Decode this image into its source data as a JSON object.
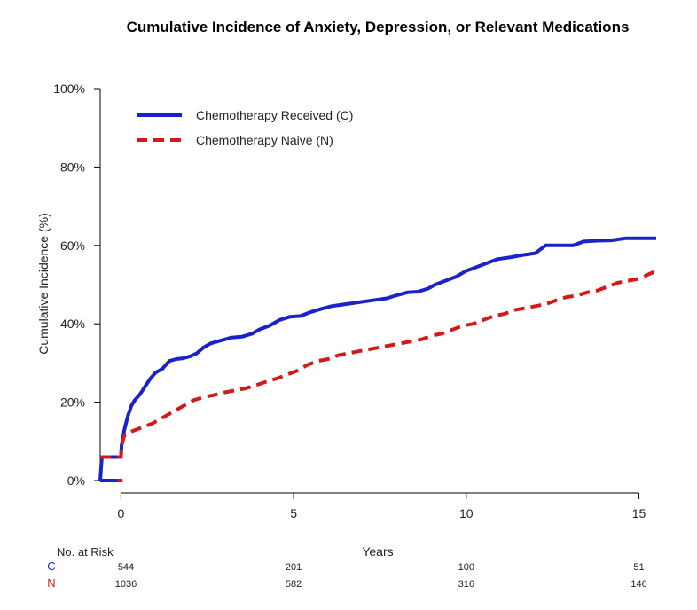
{
  "chart_data": {
    "type": "line",
    "title": "Cumulative Incidence of Anxiety, Depression, or Relevant Medications",
    "xlabel": "Years",
    "ylabel": "Cumulative Incidence (%)",
    "xlim": [
      -0.6,
      15.5
    ],
    "ylim": [
      0,
      100
    ],
    "x_ticks": [
      0,
      5,
      10,
      15
    ],
    "y_ticks": [
      0,
      20,
      40,
      60,
      80,
      100
    ],
    "y_tick_suffix": "%",
    "grid": false,
    "legend_position": "top-left",
    "series": [
      {
        "name": "Chemotherapy Received (C)",
        "color": "#1a22c8",
        "style": "solid",
        "points": [
          [
            -0.6,
            0
          ],
          [
            -0.55,
            6
          ],
          [
            0,
            6
          ],
          [
            0.02,
            9
          ],
          [
            0.1,
            13
          ],
          [
            0.2,
            16.5
          ],
          [
            0.3,
            19
          ],
          [
            0.4,
            20.5
          ],
          [
            0.55,
            22
          ],
          [
            0.7,
            24
          ],
          [
            0.85,
            26
          ],
          [
            1.0,
            27.5
          ],
          [
            1.2,
            28.5
          ],
          [
            1.4,
            30.5
          ],
          [
            1.6,
            31
          ],
          [
            1.8,
            31.2
          ],
          [
            2.0,
            31.7
          ],
          [
            2.2,
            32.5
          ],
          [
            2.4,
            34
          ],
          [
            2.6,
            35
          ],
          [
            2.8,
            35.5
          ],
          [
            3.0,
            36
          ],
          [
            3.2,
            36.5
          ],
          [
            3.5,
            36.7
          ],
          [
            3.8,
            37.5
          ],
          [
            4.0,
            38.5
          ],
          [
            4.3,
            39.5
          ],
          [
            4.6,
            41
          ],
          [
            4.9,
            41.8
          ],
          [
            5.2,
            42
          ],
          [
            5.5,
            43
          ],
          [
            5.8,
            43.8
          ],
          [
            6.1,
            44.5
          ],
          [
            6.5,
            45
          ],
          [
            6.9,
            45.5
          ],
          [
            7.3,
            46
          ],
          [
            7.7,
            46.5
          ],
          [
            8.0,
            47.3
          ],
          [
            8.3,
            48
          ],
          [
            8.6,
            48.2
          ],
          [
            8.9,
            49
          ],
          [
            9.1,
            50
          ],
          [
            9.4,
            51
          ],
          [
            9.7,
            52
          ],
          [
            10.0,
            53.5
          ],
          [
            10.3,
            54.5
          ],
          [
            10.6,
            55.5
          ],
          [
            10.9,
            56.5
          ],
          [
            11.3,
            57
          ],
          [
            11.6,
            57.5
          ],
          [
            12.0,
            58
          ],
          [
            12.3,
            60
          ],
          [
            12.7,
            60
          ],
          [
            13.1,
            60
          ],
          [
            13.4,
            61
          ],
          [
            13.8,
            61.2
          ],
          [
            14.2,
            61.3
          ],
          [
            14.6,
            61.8
          ],
          [
            15.0,
            61.8
          ],
          [
            15.5,
            61.8
          ]
        ]
      },
      {
        "name": "Chemotherapy Naive (N)",
        "color": "#d11a1a",
        "style": "dashed",
        "points": [
          [
            -0.6,
            6
          ],
          [
            0,
            6
          ],
          [
            0.02,
            9
          ],
          [
            0.1,
            11.5
          ],
          [
            0.3,
            12.5
          ],
          [
            0.6,
            13.5
          ],
          [
            0.9,
            14.5
          ],
          [
            1.2,
            16
          ],
          [
            1.5,
            17.5
          ],
          [
            1.8,
            19
          ],
          [
            2.1,
            20.5
          ],
          [
            2.4,
            21.3
          ],
          [
            2.7,
            21.8
          ],
          [
            3.0,
            22.5
          ],
          [
            3.3,
            23
          ],
          [
            3.6,
            23.5
          ],
          [
            3.9,
            24.3
          ],
          [
            4.2,
            25.2
          ],
          [
            4.5,
            26
          ],
          [
            4.8,
            27
          ],
          [
            5.1,
            28
          ],
          [
            5.4,
            29.5
          ],
          [
            5.7,
            30.5
          ],
          [
            6.0,
            31
          ],
          [
            6.3,
            32
          ],
          [
            6.6,
            32.5
          ],
          [
            6.9,
            33
          ],
          [
            7.2,
            33.5
          ],
          [
            7.5,
            34
          ],
          [
            7.8,
            34.5
          ],
          [
            8.1,
            35
          ],
          [
            8.4,
            35.5
          ],
          [
            8.7,
            36
          ],
          [
            9.0,
            37
          ],
          [
            9.3,
            37.5
          ],
          [
            9.6,
            38.5
          ],
          [
            9.9,
            39.5
          ],
          [
            10.2,
            40
          ],
          [
            10.5,
            41
          ],
          [
            10.8,
            42
          ],
          [
            11.1,
            42.5
          ],
          [
            11.4,
            43.5
          ],
          [
            11.7,
            44
          ],
          [
            12.0,
            44.5
          ],
          [
            12.3,
            45
          ],
          [
            12.6,
            46
          ],
          [
            12.9,
            46.8
          ],
          [
            13.2,
            47.2
          ],
          [
            13.5,
            48
          ],
          [
            13.8,
            48.5
          ],
          [
            14.1,
            49.5
          ],
          [
            14.4,
            50.5
          ],
          [
            14.7,
            51
          ],
          [
            15.0,
            51.5
          ],
          [
            15.5,
            53.5
          ]
        ]
      },
      {
        "name": "",
        "color": "#1a22c8",
        "style": "solid",
        "points": [
          [
            -0.6,
            0
          ],
          [
            -0.05,
            0
          ]
        ]
      },
      {
        "name": "",
        "color": "#d11a1a",
        "style": "solid",
        "points": [
          [
            -0.1,
            0
          ],
          [
            0.05,
            0
          ]
        ]
      }
    ],
    "risk_table": {
      "title": "No. at Risk",
      "rows": [
        {
          "label": "C",
          "color": "#1a22c8",
          "values": [
            "544",
            "201",
            "100",
            "51"
          ]
        },
        {
          "label": "N",
          "color": "#d11a1a",
          "values": [
            "1036",
            "582",
            "316",
            "146"
          ]
        }
      ]
    }
  }
}
